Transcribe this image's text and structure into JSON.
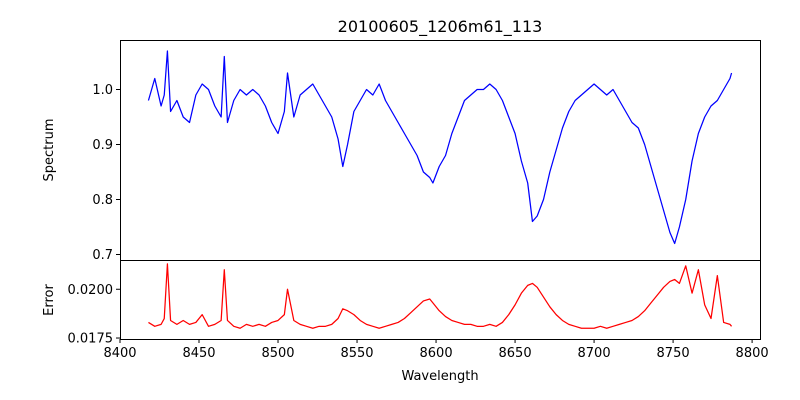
{
  "title": "20100605_1206m61_113",
  "chart_data": [
    {
      "type": "line",
      "panel": "top",
      "ylabel": "Spectrum",
      "xlabel": "",
      "xlim": [
        8400,
        8805
      ],
      "ylim": [
        0.69,
        1.09
      ],
      "yticks": [
        0.7,
        0.8,
        0.9,
        1.0
      ],
      "ytick_labels": [
        "0.7",
        "0.8",
        "0.9",
        "1.0"
      ],
      "series": [
        {
          "name": "spectrum",
          "color": "#0000ff",
          "x": [
            8418,
            8422,
            8426,
            8428,
            8430,
            8432,
            8436,
            8440,
            8444,
            8448,
            8452,
            8456,
            8460,
            8464,
            8466,
            8468,
            8472,
            8476,
            8480,
            8484,
            8488,
            8492,
            8496,
            8500,
            8504,
            8506,
            8510,
            8514,
            8518,
            8522,
            8526,
            8530,
            8534,
            8538,
            8541,
            8544,
            8548,
            8552,
            8556,
            8560,
            8564,
            8568,
            8572,
            8576,
            8580,
            8584,
            8588,
            8592,
            8596,
            8598,
            8602,
            8606,
            8610,
            8614,
            8618,
            8622,
            8626,
            8630,
            8634,
            8638,
            8642,
            8646,
            8650,
            8654,
            8658,
            8661,
            8664,
            8668,
            8672,
            8676,
            8680,
            8684,
            8688,
            8692,
            8696,
            8700,
            8704,
            8708,
            8712,
            8716,
            8720,
            8724,
            8728,
            8732,
            8736,
            8740,
            8744,
            8748,
            8751,
            8754,
            8758,
            8762,
            8766,
            8770,
            8774,
            8778,
            8782,
            8786,
            8787
          ],
          "values": [
            0.98,
            1.02,
            0.97,
            0.99,
            1.07,
            0.96,
            0.98,
            0.95,
            0.94,
            0.99,
            1.01,
            1.0,
            0.97,
            0.95,
            1.06,
            0.94,
            0.98,
            1.0,
            0.99,
            1.0,
            0.99,
            0.97,
            0.94,
            0.92,
            0.96,
            1.03,
            0.95,
            0.99,
            1.0,
            1.01,
            0.99,
            0.97,
            0.95,
            0.91,
            0.86,
            0.9,
            0.96,
            0.98,
            1.0,
            0.99,
            1.01,
            0.98,
            0.96,
            0.94,
            0.92,
            0.9,
            0.88,
            0.85,
            0.84,
            0.83,
            0.86,
            0.88,
            0.92,
            0.95,
            0.98,
            0.99,
            1.0,
            1.0,
            1.01,
            1.0,
            0.98,
            0.95,
            0.92,
            0.87,
            0.83,
            0.76,
            0.77,
            0.8,
            0.85,
            0.89,
            0.93,
            0.96,
            0.98,
            0.99,
            1.0,
            1.01,
            1.0,
            0.99,
            1.0,
            0.98,
            0.96,
            0.94,
            0.93,
            0.9,
            0.86,
            0.82,
            0.78,
            0.74,
            0.72,
            0.75,
            0.8,
            0.87,
            0.92,
            0.95,
            0.97,
            0.98,
            1.0,
            1.02,
            1.03
          ]
        }
      ]
    },
    {
      "type": "line",
      "panel": "bottom",
      "ylabel": "Error",
      "xlabel": "Wavelength",
      "xlim": [
        8400,
        8805
      ],
      "ylim": [
        0.01745,
        0.0215
      ],
      "yticks": [
        0.0175,
        0.02
      ],
      "ytick_labels": [
        "0.0175",
        "0.0200"
      ],
      "xticks": [
        8400,
        8450,
        8500,
        8550,
        8600,
        8650,
        8700,
        8750,
        8800
      ],
      "xtick_labels": [
        "8400",
        "8450",
        "8500",
        "8550",
        "8600",
        "8650",
        "8700",
        "8750",
        "8800"
      ],
      "series": [
        {
          "name": "error",
          "color": "#ff0000",
          "x": [
            8418,
            8422,
            8426,
            8428,
            8430,
            8432,
            8436,
            8440,
            8444,
            8448,
            8452,
            8456,
            8460,
            8464,
            8466,
            8468,
            8472,
            8476,
            8480,
            8484,
            8488,
            8492,
            8496,
            8500,
            8504,
            8506,
            8510,
            8514,
            8518,
            8522,
            8526,
            8530,
            8534,
            8538,
            8541,
            8544,
            8548,
            8552,
            8556,
            8560,
            8564,
            8568,
            8572,
            8576,
            8580,
            8584,
            8588,
            8592,
            8596,
            8598,
            8602,
            8606,
            8610,
            8614,
            8618,
            8622,
            8626,
            8630,
            8634,
            8638,
            8642,
            8646,
            8650,
            8654,
            8658,
            8661,
            8664,
            8668,
            8672,
            8676,
            8680,
            8684,
            8688,
            8692,
            8696,
            8700,
            8704,
            8708,
            8712,
            8716,
            8720,
            8724,
            8728,
            8732,
            8736,
            8740,
            8744,
            8748,
            8751,
            8754,
            8758,
            8762,
            8766,
            8770,
            8774,
            8778,
            8782,
            8786,
            8787
          ],
          "values": [
            0.0183,
            0.0181,
            0.0182,
            0.0185,
            0.0213,
            0.0184,
            0.0182,
            0.0184,
            0.0182,
            0.0183,
            0.0187,
            0.0181,
            0.0182,
            0.0184,
            0.021,
            0.0184,
            0.0181,
            0.018,
            0.0182,
            0.0181,
            0.0182,
            0.0181,
            0.0183,
            0.0184,
            0.0187,
            0.02,
            0.0184,
            0.0182,
            0.0181,
            0.018,
            0.0181,
            0.0181,
            0.0182,
            0.0185,
            0.019,
            0.0189,
            0.0187,
            0.0184,
            0.0182,
            0.0181,
            0.018,
            0.0181,
            0.0182,
            0.0183,
            0.0185,
            0.0188,
            0.0191,
            0.0194,
            0.0195,
            0.0193,
            0.0189,
            0.0186,
            0.0184,
            0.0183,
            0.0182,
            0.0182,
            0.0181,
            0.0181,
            0.0182,
            0.0181,
            0.0183,
            0.0187,
            0.0192,
            0.0198,
            0.0202,
            0.0203,
            0.0201,
            0.0196,
            0.0191,
            0.0187,
            0.0184,
            0.0182,
            0.0181,
            0.018,
            0.018,
            0.018,
            0.0181,
            0.018,
            0.0181,
            0.0182,
            0.0183,
            0.0184,
            0.0186,
            0.0189,
            0.0193,
            0.0197,
            0.0201,
            0.0204,
            0.0205,
            0.0203,
            0.0212,
            0.0198,
            0.021,
            0.0192,
            0.0185,
            0.0207,
            0.0183,
            0.0182,
            0.0181
          ]
        }
      ]
    }
  ]
}
